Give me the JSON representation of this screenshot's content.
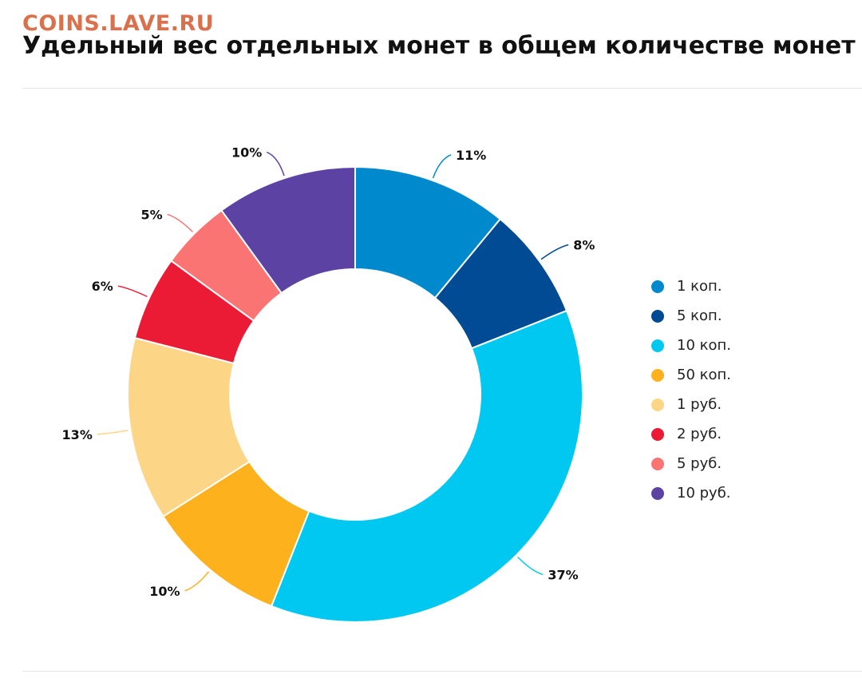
{
  "header": {
    "watermark": "COINS.LAVE.RU",
    "title": "Удельный вес отдельных монет в общем количестве монет"
  },
  "chart_data": {
    "type": "pie",
    "variant": "donut",
    "legend_position": "right",
    "categories": [
      "1 коп.",
      "5 коп.",
      "10 коп.",
      "50 коп.",
      "1 руб.",
      "2 руб.",
      "5 руб.",
      "10 руб."
    ],
    "values": [
      11,
      8,
      37,
      10,
      13,
      6,
      5,
      10
    ],
    "labels": [
      "11%",
      "8%",
      "37%",
      "10%",
      "13%",
      "6%",
      "5%",
      "10%"
    ],
    "colors": [
      "#0089cc",
      "#004b93",
      "#00c8f0",
      "#fcb11d",
      "#fdd586",
      "#ec1b35",
      "#fb7474",
      "#5c43a3"
    ]
  }
}
